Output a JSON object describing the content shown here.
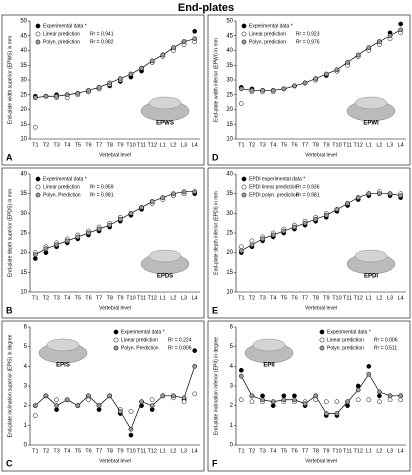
{
  "title": "End-plates",
  "chart_data": [
    {
      "type": "line",
      "panel": "A",
      "ylabel": "End-plate width superior (EPWS) in mm",
      "xlabel": "Vertebral level",
      "inset_label": "EPWS",
      "legend": "upper left",
      "categories": [
        "T1",
        "T2",
        "T3",
        "T4",
        "T5",
        "T6",
        "T7",
        "T8",
        "T9",
        "T10",
        "T11",
        "T12",
        "L1",
        "L2",
        "L3",
        "L4"
      ],
      "ylim": [
        10,
        50
      ],
      "yticks": [
        10,
        15,
        20,
        25,
        30,
        35,
        40,
        45,
        50
      ],
      "series": [
        {
          "name": "Experimental data *",
          "color": "#000000",
          "values": [
            24.5,
            24.5,
            25,
            25,
            25.5,
            26,
            27,
            28,
            29.5,
            31,
            33,
            36,
            38.5,
            40.5,
            43,
            46.5
          ]
        },
        {
          "name": "Linear prediction",
          "r2_label": "R² = 0.941",
          "color": "#ffffff",
          "values": [
            14,
            24.5,
            24,
            24,
            25,
            26,
            27,
            28.5,
            30,
            32,
            34,
            36,
            38,
            40,
            42,
            43
          ]
        },
        {
          "name": "Polyn. prediction",
          "r2_label": "R² = 0.982",
          "color": "#999999",
          "line": true,
          "values": [
            24,
            24.5,
            24.5,
            25,
            25.5,
            26.5,
            27.5,
            29,
            30.5,
            32,
            34,
            36.5,
            38.5,
            41,
            43,
            44
          ]
        }
      ]
    },
    {
      "type": "line",
      "panel": "B",
      "ylabel": "End-plate depth superior (EPDS) in mm",
      "xlabel": "Vertebral level",
      "inset_label": "EPDS",
      "legend": "upper left",
      "categories": [
        "T1",
        "T2",
        "T3",
        "T4",
        "T5",
        "T6",
        "T7",
        "T8",
        "T9",
        "T10",
        "T11",
        "T12",
        "L1",
        "L2",
        "L3",
        "L4"
      ],
      "ylim": [
        10,
        40
      ],
      "yticks": [
        10,
        15,
        20,
        25,
        30,
        35,
        40
      ],
      "series": [
        {
          "name": "Experimental data *",
          "color": "#000000",
          "values": [
            18.5,
            20,
            21.5,
            22.5,
            23.5,
            24.5,
            25.5,
            26.5,
            28,
            29.5,
            31,
            33,
            34,
            34.5,
            35,
            35
          ]
        },
        {
          "name": "Linear prediction",
          "r2_label": "R² = 0.959",
          "color": "#ffffff",
          "values": [
            20,
            21.5,
            22.5,
            23.5,
            24.5,
            25.5,
            26.5,
            27.5,
            29,
            30,
            31.5,
            32.5,
            33.5,
            34.5,
            35,
            35.5
          ]
        },
        {
          "name": "Polyn. Prediction",
          "r2_label": "R² = 0.981",
          "color": "#999999",
          "line": true,
          "values": [
            19.5,
            21,
            22,
            23,
            24,
            25,
            26,
            27,
            28.5,
            30,
            31.5,
            33,
            34,
            35,
            35.5,
            35.5
          ]
        }
      ]
    },
    {
      "type": "line",
      "panel": "C",
      "ylabel": "End-plate inclination superior (EPIS) in degree",
      "xlabel": "Vertebral level",
      "inset_label": "EPIS",
      "legend": "upper right",
      "categories": [
        "T1",
        "T2",
        "T3",
        "T4",
        "T5",
        "T6",
        "T7",
        "T8",
        "T9",
        "T10",
        "T11",
        "T12",
        "L1",
        "L2",
        "L3",
        "L4"
      ],
      "ylim": [
        0,
        6
      ],
      "yticks": [
        0,
        1,
        2,
        3,
        4,
        5,
        6
      ],
      "series": [
        {
          "name": "Experimental data *",
          "color": "#000000",
          "values": [
            2,
            2.5,
            1.8,
            2.3,
            2,
            2.5,
            1.8,
            2.5,
            1.6,
            0.5,
            2,
            1.8,
            2.5,
            2.5,
            2.3,
            4.8
          ]
        },
        {
          "name": "Linear prediction",
          "r2_label": "R² = 0.224",
          "color": "#ffffff",
          "values": [
            1.5,
            2.5,
            2.3,
            2.3,
            2,
            2.3,
            2,
            2.5,
            1.8,
            1.7,
            2.2,
            2.3,
            2.5,
            2.4,
            2.2,
            2.6
          ]
        },
        {
          "name": "Polyn. Prediction",
          "r2_label": "R² = 0.806",
          "color": "#999999",
          "line": true,
          "values": [
            2,
            2.5,
            2,
            2.3,
            2,
            2.5,
            2,
            2.5,
            1.7,
            0.8,
            2.2,
            2,
            2.5,
            2.5,
            2.4,
            4
          ]
        }
      ]
    },
    {
      "type": "line",
      "panel": "D",
      "ylabel": "End-plate width inferior (EPWI) in mm",
      "xlabel": "Vertebral level",
      "inset_label": "EPWI",
      "legend": "upper left",
      "categories": [
        "T1",
        "T2",
        "T3",
        "T4",
        "T5",
        "T6",
        "T7",
        "T8",
        "T9",
        "T10",
        "T11",
        "T12",
        "L1",
        "L2",
        "L3",
        "L4"
      ],
      "ylim": [
        10,
        50
      ],
      "yticks": [
        10,
        15,
        20,
        25,
        30,
        35,
        40,
        45,
        50
      ],
      "series": [
        {
          "name": "Experimental data *",
          "color": "#000000",
          "values": [
            27.5,
            27,
            26.5,
            26.5,
            27,
            28,
            29,
            30,
            31.5,
            33,
            35.5,
            38,
            40.5,
            43,
            46,
            49
          ]
        },
        {
          "name": "Linear prediction",
          "r2_label": "R² = 0.923",
          "color": "#ffffff",
          "values": [
            22,
            26,
            26,
            26,
            27,
            28,
            29,
            30,
            32,
            33,
            35,
            38,
            40,
            42,
            44,
            46
          ]
        },
        {
          "name": "Polyn. prediction",
          "r2_label": "R² = 0.976",
          "color": "#999999",
          "line": true,
          "values": [
            27,
            26.5,
            26.5,
            26.5,
            27,
            28,
            29,
            30.5,
            32,
            33.5,
            36,
            38.5,
            41,
            43,
            45,
            47
          ]
        }
      ]
    },
    {
      "type": "line",
      "panel": "E",
      "ylabel": "End-plate depth inferior (EPDI) in mm",
      "xlabel": "Vertebral level",
      "inset_label": "EPDI",
      "legend": "upper left",
      "categories": [
        "T1",
        "T2",
        "T3",
        "T4",
        "T5",
        "T6",
        "T7",
        "T8",
        "T9",
        "T10",
        "T11",
        "T12",
        "L1",
        "L2",
        "L3",
        "L4"
      ],
      "ylim": [
        10,
        40
      ],
      "yticks": [
        10,
        15,
        20,
        25,
        30,
        35,
        40
      ],
      "series": [
        {
          "name": "EPDI experimental data *",
          "color": "#000000",
          "values": [
            20,
            21.5,
            23,
            24,
            25,
            26,
            27,
            28,
            29,
            30.5,
            32,
            33.5,
            34.5,
            35,
            34.5,
            34
          ]
        },
        {
          "name": "EPDI linear prediction",
          "r2_label": "R² = 0.936",
          "color": "#ffffff",
          "values": [
            21.5,
            23,
            24,
            25,
            26,
            27,
            28,
            29,
            30,
            31,
            32.5,
            34,
            35,
            35.5,
            35,
            35
          ]
        },
        {
          "name": "EPDI polyn. prediction",
          "r2_label": "R² = 0.981",
          "color": "#999999",
          "line": true,
          "values": [
            20.5,
            22,
            23.5,
            24.5,
            25.5,
            26.5,
            27.5,
            28.5,
            29.5,
            31,
            32.5,
            34,
            35,
            35,
            35,
            34.5
          ]
        }
      ]
    },
    {
      "type": "line",
      "panel": "F",
      "ylabel": "End-plate inclination inferior (EPII) in degree",
      "xlabel": "Vertebral level",
      "inset_label": "EPII",
      "legend": "upper right",
      "categories": [
        "T1",
        "T2",
        "T3",
        "T4",
        "T5",
        "T6",
        "T7",
        "T8",
        "T9",
        "T10",
        "T11",
        "T12",
        "L1",
        "L2",
        "L3",
        "L4"
      ],
      "ylim": [
        0,
        6
      ],
      "yticks": [
        0,
        1,
        2,
        3,
        4,
        5,
        6
      ],
      "series": [
        {
          "name": "Experimental data *",
          "color": "#000000",
          "values": [
            3.8,
            2.5,
            2.5,
            2,
            2.5,
            2.5,
            2,
            2.5,
            1.5,
            1.5,
            2,
            3,
            4,
            2.5,
            2.5,
            2.5
          ]
        },
        {
          "name": "Linear prediction",
          "r2_label": "R² = 0.006",
          "color": "#ffffff",
          "values": [
            2.3,
            2.2,
            2.2,
            2.2,
            2.2,
            2.2,
            2.2,
            2.3,
            2.2,
            2.2,
            2.2,
            2.3,
            2.3,
            2.2,
            2.3,
            2.3
          ]
        },
        {
          "name": "Polyn. prediction",
          "r2_label": "R² = 0.511",
          "color": "#999999",
          "line": true,
          "values": [
            3.5,
            2.5,
            2.3,
            2.2,
            2.3,
            2.3,
            2.1,
            2.5,
            1.6,
            1.6,
            2.2,
            2.8,
            3.6,
            2.7,
            2.5,
            2.5
          ]
        }
      ]
    }
  ]
}
